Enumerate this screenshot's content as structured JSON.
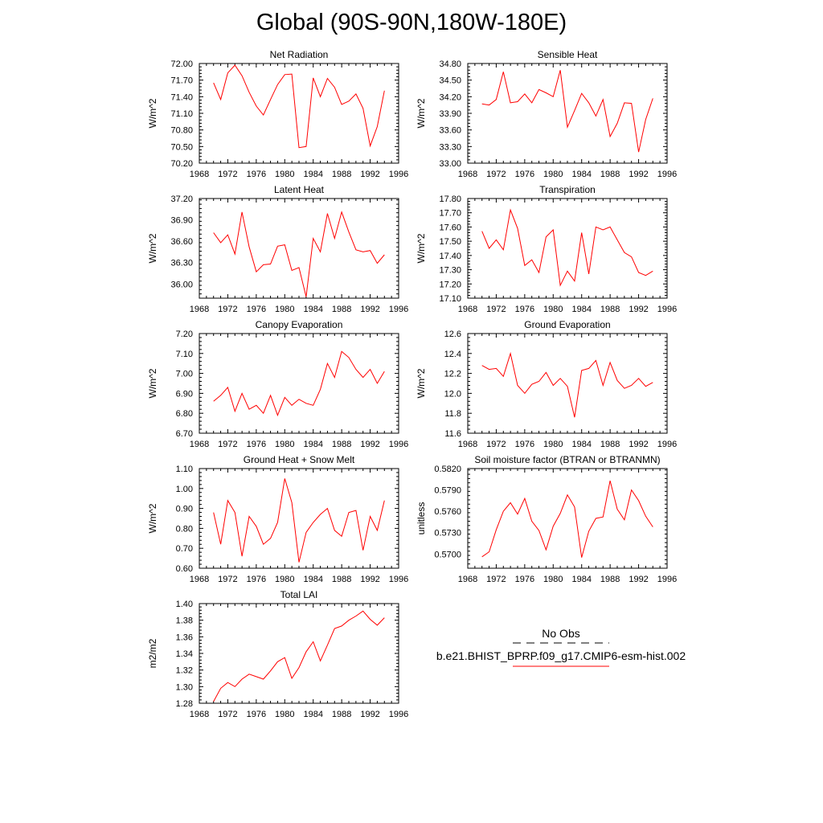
{
  "title": "Global (90S-90N,180W-180E)",
  "colors": {
    "series": "#ff0000",
    "obs": "#000000",
    "axis": "#000000"
  },
  "legend": {
    "obs_label": "No Obs",
    "model_label": "b.e21.BHIST_BPRP.f09_g17.CMIP6-esm-hist.002"
  },
  "chart_data": [
    {
      "type": "line",
      "title": "Net Radiation",
      "ylabel": "W/m^2",
      "xlim": [
        1968,
        1996
      ],
      "xticks": [
        "1968",
        "1972",
        "1976",
        "1980",
        "1984",
        "1988",
        "1992",
        "1996"
      ],
      "ylim": [
        70.2,
        72.0
      ],
      "yticks": [
        "70.20",
        "70.50",
        "70.80",
        "71.10",
        "71.40",
        "71.70",
        "72.00"
      ],
      "x": [
        1970,
        1971,
        1972,
        1973,
        1974,
        1975,
        1976,
        1977,
        1978,
        1979,
        1980,
        1981,
        1982,
        1983,
        1984,
        1985,
        1986,
        1987,
        1988,
        1989,
        1990,
        1991,
        1992,
        1993,
        1994
      ],
      "series": [
        {
          "name": "b.e21.BHIST_BPRP.f09_g17.CMIP6-esm-hist.002",
          "values": [
            71.65,
            71.35,
            71.83,
            71.97,
            71.78,
            71.48,
            71.23,
            71.07,
            71.35,
            71.62,
            71.8,
            71.81,
            70.48,
            70.5,
            71.74,
            71.4,
            71.73,
            71.57,
            71.26,
            71.32,
            71.45,
            71.19,
            70.51,
            70.86,
            71.51
          ]
        }
      ]
    },
    {
      "type": "line",
      "title": "Sensible Heat",
      "ylabel": "W/m^2",
      "xlim": [
        1968,
        1996
      ],
      "xticks": [
        "1968",
        "1972",
        "1976",
        "1980",
        "1984",
        "1988",
        "1992",
        "1996"
      ],
      "ylim": [
        33.0,
        34.8
      ],
      "yticks": [
        "33.00",
        "33.30",
        "33.60",
        "33.90",
        "34.20",
        "34.50",
        "34.80"
      ],
      "x": [
        1970,
        1971,
        1972,
        1973,
        1974,
        1975,
        1976,
        1977,
        1978,
        1979,
        1980,
        1981,
        1982,
        1983,
        1984,
        1985,
        1986,
        1987,
        1988,
        1989,
        1990,
        1991,
        1992,
        1993,
        1994
      ],
      "series": [
        {
          "name": "b.e21.BHIST_BPRP.f09_g17.CMIP6-esm-hist.002",
          "values": [
            34.07,
            34.05,
            34.15,
            34.65,
            34.09,
            34.11,
            34.25,
            34.09,
            34.33,
            34.27,
            34.2,
            34.68,
            33.65,
            33.95,
            34.26,
            34.09,
            33.85,
            34.15,
            33.48,
            33.72,
            34.09,
            34.08,
            33.2,
            33.79,
            34.17
          ]
        }
      ]
    },
    {
      "type": "line",
      "title": "Latent Heat",
      "ylabel": "W/m^2",
      "xlim": [
        1968,
        1996
      ],
      "xticks": [
        "1968",
        "1972",
        "1976",
        "1980",
        "1984",
        "1988",
        "1992",
        "1996"
      ],
      "ylim": [
        35.8,
        37.2
      ],
      "yticks": [
        "36.00",
        "36.30",
        "36.60",
        "36.90",
        "37.20"
      ],
      "x": [
        1970,
        1971,
        1972,
        1973,
        1974,
        1975,
        1976,
        1977,
        1978,
        1979,
        1980,
        1981,
        1982,
        1983,
        1984,
        1985,
        1986,
        1987,
        1988,
        1989,
        1990,
        1991,
        1992,
        1993,
        1994
      ],
      "series": [
        {
          "name": "b.e21.BHIST_BPRP.f09_g17.CMIP6-esm-hist.002",
          "values": [
            36.72,
            36.58,
            36.69,
            36.42,
            37.01,
            36.52,
            36.17,
            36.27,
            36.28,
            36.53,
            36.55,
            36.19,
            36.23,
            35.82,
            36.64,
            36.45,
            36.99,
            36.64,
            37.01,
            36.73,
            36.48,
            36.45,
            36.47,
            36.29,
            36.41
          ]
        }
      ]
    },
    {
      "type": "line",
      "title": "Transpiration",
      "ylabel": "W/m^2",
      "xlim": [
        1968,
        1996
      ],
      "xticks": [
        "1968",
        "1972",
        "1976",
        "1980",
        "1984",
        "1988",
        "1992",
        "1996"
      ],
      "ylim": [
        17.1,
        17.8
      ],
      "yticks": [
        "17.10",
        "17.20",
        "17.30",
        "17.40",
        "17.50",
        "17.60",
        "17.70",
        "17.80"
      ],
      "x": [
        1970,
        1971,
        1972,
        1973,
        1974,
        1975,
        1976,
        1977,
        1978,
        1979,
        1980,
        1981,
        1982,
        1983,
        1984,
        1985,
        1986,
        1987,
        1988,
        1989,
        1990,
        1991,
        1992,
        1993,
        1994
      ],
      "series": [
        {
          "name": "b.e21.BHIST_BPRP.f09_g17.CMIP6-esm-hist.002",
          "values": [
            17.57,
            17.45,
            17.51,
            17.44,
            17.72,
            17.59,
            17.33,
            17.37,
            17.28,
            17.53,
            17.58,
            17.19,
            17.29,
            17.22,
            17.56,
            17.27,
            17.6,
            17.58,
            17.6,
            17.51,
            17.42,
            17.39,
            17.28,
            17.26,
            17.29
          ]
        }
      ]
    },
    {
      "type": "line",
      "title": "Canopy Evaporation",
      "ylabel": "W/m^2",
      "xlim": [
        1968,
        1996
      ],
      "xticks": [
        "1968",
        "1972",
        "1976",
        "1980",
        "1984",
        "1988",
        "1992",
        "1996"
      ],
      "ylim": [
        6.7,
        7.2
      ],
      "yticks": [
        "6.70",
        "6.80",
        "6.90",
        "7.00",
        "7.10",
        "7.20"
      ],
      "x": [
        1970,
        1971,
        1972,
        1973,
        1974,
        1975,
        1976,
        1977,
        1978,
        1979,
        1980,
        1981,
        1982,
        1983,
        1984,
        1985,
        1986,
        1987,
        1988,
        1989,
        1990,
        1991,
        1992,
        1993,
        1994
      ],
      "series": [
        {
          "name": "b.e21.BHIST_BPRP.f09_g17.CMIP6-esm-hist.002",
          "values": [
            6.86,
            6.89,
            6.93,
            6.81,
            6.9,
            6.82,
            6.84,
            6.8,
            6.89,
            6.79,
            6.88,
            6.84,
            6.87,
            6.85,
            6.84,
            6.92,
            7.05,
            6.98,
            7.11,
            7.08,
            7.02,
            6.98,
            7.02,
            6.95,
            7.01
          ]
        }
      ]
    },
    {
      "type": "line",
      "title": "Ground Evaporation",
      "ylabel": "W/m^2",
      "xlim": [
        1968,
        1996
      ],
      "xticks": [
        "1968",
        "1972",
        "1976",
        "1980",
        "1984",
        "1988",
        "1992",
        "1996"
      ],
      "ylim": [
        11.6,
        12.6
      ],
      "yticks": [
        "11.6",
        "11.8",
        "12.0",
        "12.2",
        "12.4",
        "12.6"
      ],
      "x": [
        1970,
        1971,
        1972,
        1973,
        1974,
        1975,
        1976,
        1977,
        1978,
        1979,
        1980,
        1981,
        1982,
        1983,
        1984,
        1985,
        1986,
        1987,
        1988,
        1989,
        1990,
        1991,
        1992,
        1993,
        1994
      ],
      "series": [
        {
          "name": "b.e21.BHIST_BPRP.f09_g17.CMIP6-esm-hist.002",
          "values": [
            12.28,
            12.24,
            12.25,
            12.17,
            12.4,
            12.08,
            12.0,
            12.09,
            12.12,
            12.21,
            12.08,
            12.15,
            12.07,
            11.76,
            12.23,
            12.25,
            12.33,
            12.08,
            12.31,
            12.13,
            12.05,
            12.08,
            12.15,
            12.07,
            12.11
          ]
        }
      ]
    },
    {
      "type": "line",
      "title": "Ground Heat + Snow Melt",
      "ylabel": "W/m^2",
      "xlim": [
        1968,
        1996
      ],
      "xticks": [
        "1968",
        "1972",
        "1976",
        "1980",
        "1984",
        "1988",
        "1992",
        "1996"
      ],
      "ylim": [
        0.6,
        1.1
      ],
      "yticks": [
        "0.60",
        "0.70",
        "0.80",
        "0.90",
        "1.00",
        "1.10"
      ],
      "x": [
        1970,
        1971,
        1972,
        1973,
        1974,
        1975,
        1976,
        1977,
        1978,
        1979,
        1980,
        1981,
        1982,
        1983,
        1984,
        1985,
        1986,
        1987,
        1988,
        1989,
        1990,
        1991,
        1992,
        1993,
        1994
      ],
      "series": [
        {
          "name": "b.e21.BHIST_BPRP.f09_g17.CMIP6-esm-hist.002",
          "values": [
            0.88,
            0.72,
            0.94,
            0.88,
            0.66,
            0.86,
            0.81,
            0.72,
            0.75,
            0.83,
            1.05,
            0.93,
            0.63,
            0.78,
            0.83,
            0.87,
            0.9,
            0.79,
            0.76,
            0.88,
            0.89,
            0.69,
            0.86,
            0.79,
            0.94
          ]
        }
      ]
    },
    {
      "type": "line",
      "title": "Soil moisture factor (BTRAN or BTRANMN)",
      "ylabel": "unitless",
      "xlim": [
        1968,
        1996
      ],
      "xticks": [
        "1968",
        "1972",
        "1976",
        "1980",
        "1984",
        "1988",
        "1992",
        "1996"
      ],
      "ylim": [
        0.568,
        0.582
      ],
      "yticks": [
        "0.5700",
        "0.5730",
        "0.5760",
        "0.5790",
        "0.5820"
      ],
      "x": [
        1970,
        1971,
        1972,
        1973,
        1974,
        1975,
        1976,
        1977,
        1978,
        1979,
        1980,
        1981,
        1982,
        1983,
        1984,
        1985,
        1986,
        1987,
        1988,
        1989,
        1990,
        1991,
        1992,
        1993,
        1994
      ],
      "series": [
        {
          "name": "b.e21.BHIST_BPRP.f09_g17.CMIP6-esm-hist.002",
          "values": [
            0.5696,
            0.5703,
            0.5734,
            0.576,
            0.5772,
            0.5756,
            0.5778,
            0.5746,
            0.5733,
            0.5706,
            0.5739,
            0.5757,
            0.5783,
            0.5766,
            0.5695,
            0.5732,
            0.575,
            0.5752,
            0.5803,
            0.5763,
            0.5748,
            0.579,
            0.5775,
            0.5753,
            0.5738
          ]
        }
      ]
    },
    {
      "type": "line",
      "title": "Total LAI",
      "ylabel": "m2/m2",
      "xlim": [
        1968,
        1996
      ],
      "xticks": [
        "1968",
        "1972",
        "1976",
        "1980",
        "1984",
        "1988",
        "1992",
        "1996"
      ],
      "ylim": [
        1.28,
        1.4
      ],
      "yticks": [
        "1.28",
        "1.30",
        "1.32",
        "1.34",
        "1.36",
        "1.38",
        "1.40"
      ],
      "x": [
        1970,
        1971,
        1972,
        1973,
        1974,
        1975,
        1976,
        1977,
        1978,
        1979,
        1980,
        1981,
        1982,
        1983,
        1984,
        1985,
        1986,
        1987,
        1988,
        1989,
        1990,
        1991,
        1992,
        1993,
        1994
      ],
      "series": [
        {
          "name": "b.e21.BHIST_BPRP.f09_g17.CMIP6-esm-hist.002",
          "values": [
            1.282,
            1.298,
            1.305,
            1.3,
            1.309,
            1.315,
            1.312,
            1.309,
            1.319,
            1.33,
            1.335,
            1.31,
            1.323,
            1.342,
            1.354,
            1.331,
            1.35,
            1.37,
            1.373,
            1.38,
            1.385,
            1.391,
            1.381,
            1.374,
            1.383
          ]
        }
      ]
    }
  ]
}
